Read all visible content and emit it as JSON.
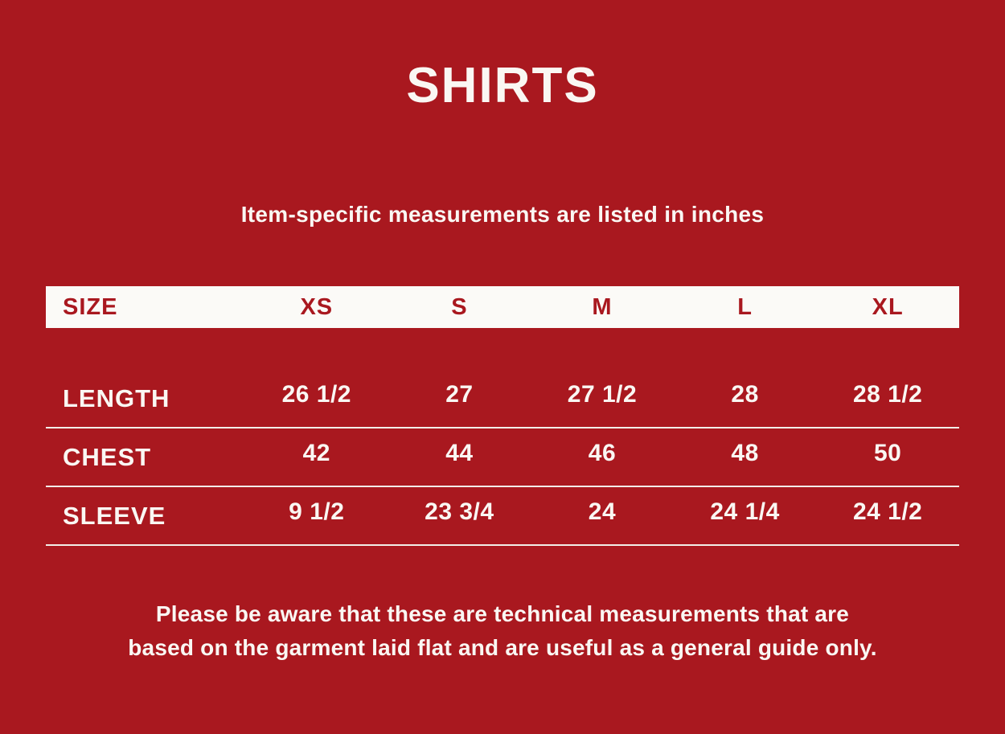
{
  "chart_data": {
    "type": "table",
    "title": "SHIRTS",
    "subtitle": "Item-specific measurements are listed in inches",
    "columns": [
      "SIZE",
      "XS",
      "S",
      "M",
      "L",
      "XL"
    ],
    "rows": [
      [
        "LENGTH",
        "26 1/2",
        "27",
        "27 1/2",
        "28",
        "28 1/2"
      ],
      [
        "CHEST",
        "42",
        "44",
        "46",
        "48",
        "50"
      ],
      [
        "SLEEVE",
        "9 1/2",
        "23 3/4",
        "24",
        "24 1/4",
        "24 1/2"
      ]
    ],
    "note": "Please be aware that these are technical measurements that are based on the garment laid flat and are useful as a general guide only.",
    "units": "inches"
  },
  "page": {
    "footnote_lines": [
      "Please be aware that these are technical measurements that are",
      "based on the garment laid flat and are useful as a general guide only."
    ]
  },
  "colors": {
    "background": "#A9181F",
    "text": "#FAF7F3",
    "header-bg": "#FBFAF7",
    "header-text": "#A9181F",
    "divider": "#F2EEE8"
  }
}
